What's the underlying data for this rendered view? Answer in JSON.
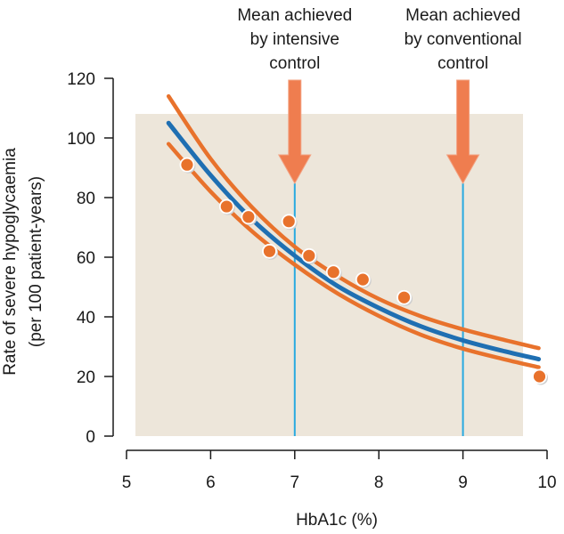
{
  "chart_data": {
    "type": "scatter",
    "xlabel": "HbA1c (%)",
    "ylabel_line1": "Rate of severe hypoglycaemia",
    "ylabel_line2": "(per 100 patient-years)",
    "xlim": [
      5,
      10
    ],
    "ylim": [
      0,
      120
    ],
    "x_ticks": [
      5,
      6,
      7,
      8,
      9,
      10
    ],
    "y_ticks": [
      0,
      20,
      40,
      60,
      80,
      100,
      120
    ],
    "grid": false,
    "colors": {
      "points": "#e8722c",
      "fit_line": "#1f6fb2",
      "ci_line": "#e8722c",
      "background_box": "#ede6da",
      "marker_line": "#29a9e0",
      "arrow": "#ef7d4f"
    },
    "points": [
      {
        "x": 5.72,
        "y": 91
      },
      {
        "x": 6.19,
        "y": 77
      },
      {
        "x": 6.45,
        "y": 73.5
      },
      {
        "x": 6.7,
        "y": 62
      },
      {
        "x": 6.93,
        "y": 72
      },
      {
        "x": 7.17,
        "y": 60.5
      },
      {
        "x": 7.46,
        "y": 55
      },
      {
        "x": 7.81,
        "y": 52.5
      },
      {
        "x": 8.3,
        "y": 46.5
      },
      {
        "x": 9.91,
        "y": 20
      }
    ],
    "fit_curve": {
      "x": [
        5.5,
        6,
        6.5,
        7,
        7.5,
        8,
        8.5,
        9,
        9.5,
        9.9
      ],
      "y": [
        105,
        87.5,
        72.5,
        60.5,
        50.5,
        43,
        36.8,
        32.1,
        28.4,
        25.8
      ]
    },
    "ci_upper": {
      "x": [
        5.5,
        6,
        6.5,
        7,
        7.5,
        8,
        8.5,
        9,
        9.5,
        9.9
      ],
      "y": [
        114,
        93,
        76.5,
        63.5,
        53.8,
        46,
        40.2,
        35.8,
        32.2,
        29.5
      ]
    },
    "ci_lower": {
      "x": [
        5.5,
        6,
        6.5,
        7,
        7.5,
        8,
        8.5,
        9,
        9.5,
        9.9
      ],
      "y": [
        98,
        82,
        68.5,
        57.5,
        48,
        40.3,
        34,
        29.3,
        25.7,
        23.1
      ]
    },
    "markers": [
      {
        "x": 7,
        "label_lines": [
          "Mean achieved",
          "by intensive",
          "control"
        ]
      },
      {
        "x": 9,
        "label_lines": [
          "Mean achieved",
          "by conventional",
          "control"
        ]
      }
    ]
  }
}
